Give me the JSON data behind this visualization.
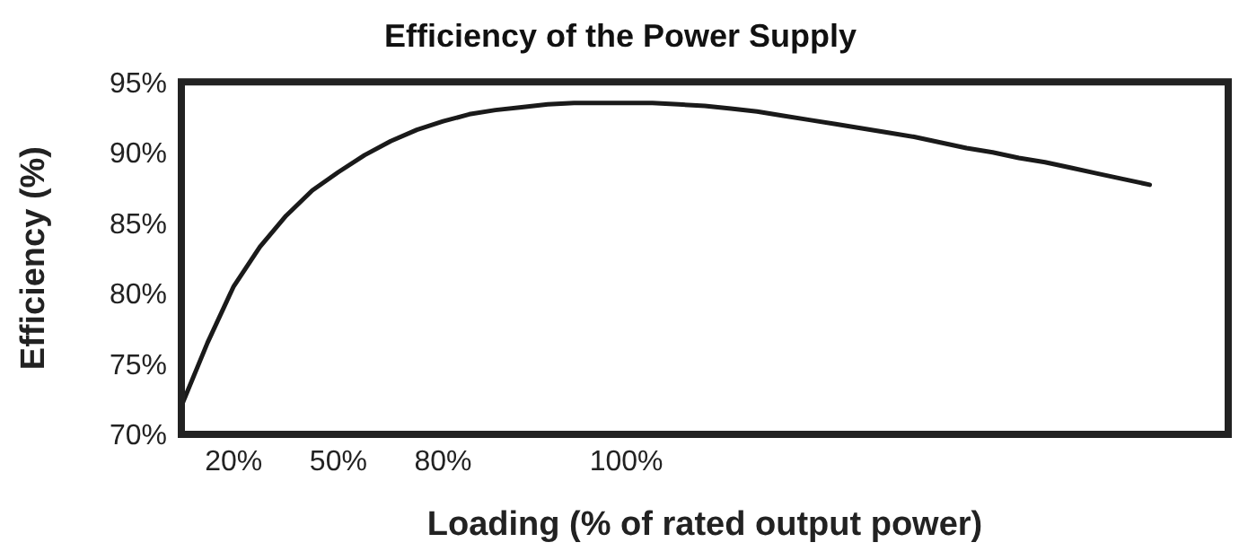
{
  "chart_data": {
    "type": "line",
    "title": "Efficiency of the Power Supply",
    "xlabel": "Loading (% of rated output power)",
    "ylabel": "Efficiency (%)",
    "categories": [
      null,
      null,
      "20%",
      null,
      null,
      null,
      "50%",
      null,
      null,
      null,
      "80%",
      null,
      null,
      null,
      null,
      null,
      null,
      "100%",
      null,
      null,
      null,
      null,
      null,
      null,
      null,
      null,
      null,
      null,
      null,
      null,
      null,
      null,
      null,
      null,
      null,
      null,
      null,
      null,
      null,
      null,
      null
    ],
    "series": [
      {
        "color": "#1a1a1a",
        "values": [
          72,
          76.5,
          80.5,
          83.3,
          85.5,
          87.3,
          88.6,
          89.8,
          90.8,
          91.6,
          92.2,
          92.7,
          93.0,
          93.2,
          93.4,
          93.5,
          93.5,
          93.5,
          93.5,
          93.4,
          93.3,
          93.1,
          92.9,
          92.6,
          92.3,
          92.0,
          91.7,
          91.4,
          91.1,
          90.7,
          90.3,
          90.0,
          89.6,
          89.3,
          88.9,
          88.5,
          88.1,
          87.7,
          null,
          null,
          null
        ]
      }
    ],
    "ylim": [
      70,
      95
    ],
    "yticks": [
      {
        "value": 70,
        "label": "70%"
      },
      {
        "value": 75,
        "label": "75%"
      },
      {
        "value": 80,
        "label": "80%"
      },
      {
        "value": 85,
        "label": "85%"
      },
      {
        "value": 90,
        "label": "90%"
      },
      {
        "value": 95,
        "label": "95%"
      }
    ],
    "grid": false,
    "legend": false,
    "marker": "none",
    "line_style": "solid"
  }
}
